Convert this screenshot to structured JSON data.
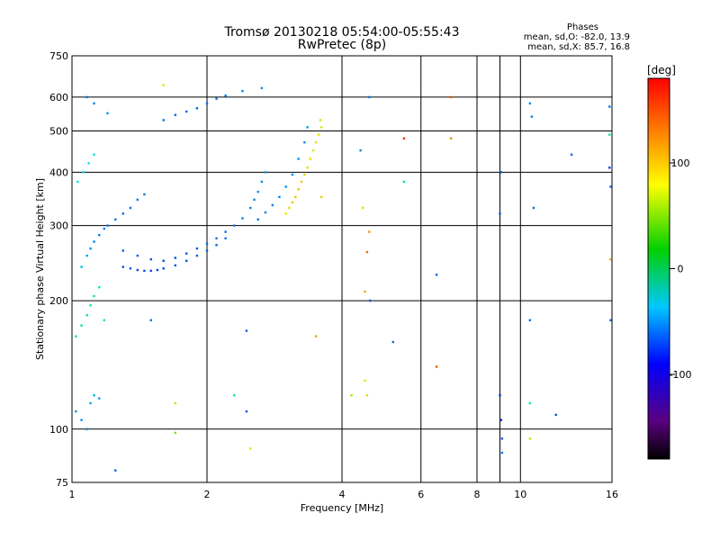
{
  "chart_data": {
    "type": "scatter",
    "title": "Tromsø 20130218 05:54:00-05:55:43",
    "subtitle": "RwPretec (8p)",
    "xlabel": "Frequency [MHz]",
    "ylabel": "Stationary phase Virtual Height [km]",
    "xscale": "log",
    "yscale": "log",
    "xlim": [
      1,
      16
    ],
    "ylim": [
      75,
      750
    ],
    "xticks": [
      1,
      2,
      4,
      6,
      8,
      10,
      16
    ],
    "xtick_labels": [
      "1",
      "2",
      "4",
      "6",
      "8",
      "10",
      "16"
    ],
    "xgrid": [
      1,
      2,
      4,
      6,
      8,
      9,
      10,
      16
    ],
    "yticks": [
      75,
      100,
      200,
      300,
      400,
      500,
      600,
      750
    ],
    "ytick_labels": [
      "75",
      "100",
      "200",
      "300",
      "400",
      "500",
      "600",
      "750"
    ],
    "grid": true,
    "colorbar": {
      "label": "[deg]",
      "min": -180,
      "max": 180,
      "ticks": [
        100,
        0,
        -100
      ],
      "tick_labels": [
        "100",
        "0",
        "-100"
      ]
    },
    "stats": {
      "heading": "Phases",
      "line_o": "mean, sd,O: -82.0, 13.9",
      "line_x": "mean, sd,X: 85.7, 16.8"
    },
    "series": [
      {
        "points": [
          [
            1.05,
            240,
            -75
          ],
          [
            1.08,
            255,
            -82
          ],
          [
            1.1,
            265,
            -88
          ],
          [
            1.12,
            275,
            -92
          ],
          [
            1.15,
            285,
            -95
          ],
          [
            1.18,
            295,
            -96
          ],
          [
            1.2,
            300,
            -98
          ],
          [
            1.25,
            310,
            -100
          ],
          [
            1.3,
            320,
            -102
          ],
          [
            1.35,
            330,
            -100
          ],
          [
            1.4,
            345,
            -98
          ],
          [
            1.45,
            355,
            -96
          ],
          [
            1.3,
            262,
            -104
          ],
          [
            1.4,
            255,
            -108
          ],
          [
            1.5,
            250,
            -110
          ],
          [
            1.6,
            248,
            -112
          ],
          [
            1.7,
            252,
            -112
          ],
          [
            1.8,
            258,
            -110
          ],
          [
            1.9,
            265,
            -106
          ],
          [
            2.0,
            272,
            -103
          ],
          [
            2.1,
            280,
            -100
          ],
          [
            2.2,
            290,
            -98
          ],
          [
            2.3,
            300,
            -96
          ],
          [
            2.4,
            312,
            -95
          ],
          [
            2.5,
            330,
            -93
          ],
          [
            2.55,
            345,
            -92
          ],
          [
            2.6,
            360,
            -90
          ],
          [
            2.65,
            380,
            -90
          ],
          [
            2.7,
            400,
            -88
          ],
          [
            1.3,
            240,
            -108
          ],
          [
            1.35,
            238,
            -110
          ],
          [
            1.4,
            236,
            -112
          ],
          [
            1.45,
            235,
            -113
          ],
          [
            1.5,
            235,
            -114
          ],
          [
            1.55,
            236,
            -114
          ],
          [
            1.6,
            238,
            -113
          ],
          [
            1.7,
            242,
            -112
          ],
          [
            1.8,
            248,
            -110
          ],
          [
            1.9,
            255,
            -107
          ],
          [
            2.0,
            262,
            -104
          ],
          [
            2.1,
            270,
            -102
          ],
          [
            2.2,
            280,
            -100
          ],
          [
            2.6,
            310,
            -98
          ],
          [
            2.7,
            322,
            -96
          ],
          [
            2.8,
            335,
            -95
          ],
          [
            2.9,
            350,
            -94
          ],
          [
            3.0,
            370,
            -92
          ],
          [
            3.1,
            395,
            -91
          ],
          [
            3.2,
            430,
            -90
          ],
          [
            3.3,
            470,
            -88
          ],
          [
            3.35,
            510,
            -86
          ],
          [
            1.6,
            530,
            -100
          ],
          [
            1.7,
            545,
            -102
          ],
          [
            1.8,
            555,
            -104
          ],
          [
            1.9,
            565,
            -106
          ],
          [
            2.0,
            580,
            -104
          ],
          [
            2.1,
            595,
            -100
          ],
          [
            2.2,
            605,
            -96
          ],
          [
            2.4,
            620,
            -92
          ],
          [
            2.65,
            630,
            -90
          ],
          [
            3.0,
            320,
            100
          ],
          [
            3.05,
            330,
            105
          ],
          [
            3.1,
            340,
            108
          ],
          [
            3.15,
            350,
            110
          ],
          [
            3.2,
            365,
            112
          ],
          [
            3.25,
            380,
            110
          ],
          [
            3.3,
            395,
            108
          ],
          [
            3.35,
            410,
            106
          ],
          [
            3.4,
            430,
            104
          ],
          [
            3.45,
            450,
            102
          ],
          [
            3.5,
            470,
            100
          ],
          [
            3.55,
            490,
            98
          ],
          [
            3.6,
            510,
            96
          ],
          [
            3.58,
            530,
            94
          ],
          [
            1.02,
            110,
            -85
          ],
          [
            1.05,
            105,
            -88
          ],
          [
            1.08,
            100,
            -92
          ],
          [
            1.1,
            115,
            -80
          ],
          [
            1.12,
            120,
            -78
          ],
          [
            1.15,
            118,
            -82
          ],
          [
            1.02,
            165,
            -40
          ],
          [
            1.05,
            175,
            -35
          ],
          [
            1.08,
            185,
            -30
          ],
          [
            1.1,
            195,
            -38
          ],
          [
            1.12,
            205,
            -42
          ],
          [
            1.15,
            215,
            -45
          ],
          [
            1.18,
            180,
            -36
          ],
          [
            1.03,
            380,
            -60
          ],
          [
            1.06,
            400,
            -55
          ],
          [
            1.09,
            420,
            -58
          ],
          [
            1.12,
            440,
            -62
          ],
          [
            1.08,
            600,
            -100
          ],
          [
            1.12,
            580,
            -95
          ],
          [
            1.2,
            550,
            -90
          ],
          [
            4.5,
            210,
            120
          ],
          [
            4.55,
            260,
            140
          ],
          [
            4.6,
            290,
            125
          ],
          [
            4.4,
            450,
            -90
          ],
          [
            4.45,
            330,
            90
          ],
          [
            4.5,
            130,
            100
          ],
          [
            4.55,
            120,
            105
          ],
          [
            4.6,
            600,
            -100
          ],
          [
            4.62,
            200,
            -110
          ],
          [
            6.5,
            230,
            -105
          ],
          [
            6.5,
            140,
            150
          ],
          [
            7.0,
            600,
            150
          ],
          [
            7.0,
            480,
            130
          ],
          [
            9.0,
            120,
            -120
          ],
          [
            9.05,
            105,
            -130
          ],
          [
            9.1,
            95,
            -110
          ],
          [
            9.1,
            88,
            -100
          ],
          [
            9.0,
            320,
            -105
          ],
          [
            9.05,
            400,
            -108
          ],
          [
            10.5,
            580,
            -90
          ],
          [
            10.6,
            540,
            -95
          ],
          [
            10.7,
            330,
            -100
          ],
          [
            10.5,
            180,
            -100
          ],
          [
            10.5,
            115,
            -30
          ],
          [
            10.5,
            95,
            90
          ],
          [
            12.0,
            108,
            -110
          ],
          [
            13.0,
            440,
            -105
          ],
          [
            15.8,
            410,
            -120
          ],
          [
            15.9,
            370,
            -110
          ],
          [
            15.9,
            180,
            -115
          ],
          [
            15.8,
            570,
            -100
          ],
          [
            15.9,
            250,
            130
          ],
          [
            15.8,
            490,
            -40
          ],
          [
            1.6,
            640,
            100
          ],
          [
            1.5,
            180,
            -100
          ],
          [
            1.7,
            115,
            90
          ],
          [
            1.7,
            98,
            60
          ],
          [
            2.5,
            90,
            100
          ],
          [
            2.45,
            170,
            -105
          ],
          [
            2.45,
            110,
            -108
          ],
          [
            2.3,
            120,
            -40
          ],
          [
            3.5,
            165,
            120
          ],
          [
            3.6,
            350,
            110
          ],
          [
            4.2,
            120,
            80
          ],
          [
            5.2,
            160,
            -100
          ],
          [
            5.5,
            480,
            160
          ],
          [
            5.5,
            380,
            -20
          ],
          [
            1.25,
            80,
            -105
          ]
        ]
      }
    ]
  }
}
